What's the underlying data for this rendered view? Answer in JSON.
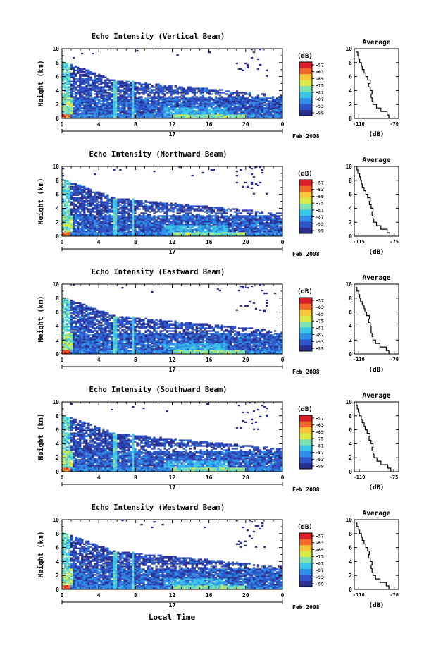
{
  "figure": {
    "date_label": "Feb 2008",
    "day_label": "17",
    "xlabel_bottom": "Local Time"
  },
  "colorbar": {
    "label": "(dB)",
    "tick_labels": [
      "-57",
      "-63",
      "-69",
      "-75",
      "-81",
      "-87",
      "-93",
      "-99"
    ],
    "colors": [
      "#2b2f8f",
      "#2f55c8",
      "#2f8ee6",
      "#39c6e8",
      "#7fe0b0",
      "#d8ea4a",
      "#f7c43a",
      "#ef6a2a",
      "#d9202a"
    ]
  },
  "chart_data": [
    {
      "type": "heatmap",
      "title": "Echo Intensity (Vertical Beam)",
      "ylabel": "Height (km)",
      "xlabel": "",
      "x_ticks": [
        "0",
        "4",
        "8",
        "12",
        "16",
        "20",
        "0"
      ],
      "x_range": [
        0,
        24
      ],
      "y_ticks": [
        "0",
        "2",
        "4",
        "6",
        "8",
        "10"
      ],
      "y_range": [
        0,
        10
      ],
      "colorbar_label": "(dB)",
      "colorbar_range": [
        -99,
        -57
      ],
      "profile": {
        "title": "Average",
        "xlabel": "(dB)",
        "x_ticks": [
          "-110",
          "-70"
        ],
        "x_range": [
          -115,
          -65
        ],
        "y_ticks": [
          "0",
          "2",
          "4",
          "6",
          "8",
          "10"
        ],
        "y_range": [
          0,
          10
        ],
        "values": [
          [
            -76,
            0
          ],
          [
            -78,
            0.5
          ],
          [
            -85,
            1
          ],
          [
            -90,
            1.5
          ],
          [
            -94,
            2
          ],
          [
            -95,
            2.5
          ],
          [
            -96,
            3
          ],
          [
            -95,
            3.5
          ],
          [
            -97,
            4
          ],
          [
            -99,
            4.5
          ],
          [
            -97,
            5
          ],
          [
            -100,
            5.5
          ],
          [
            -102,
            6
          ],
          [
            -104,
            6.5
          ],
          [
            -106,
            7
          ],
          [
            -107,
            7.5
          ],
          [
            -109,
            8
          ],
          [
            -110,
            8.5
          ],
          [
            -111,
            9
          ],
          [
            -113,
            9.5
          ]
        ]
      }
    },
    {
      "type": "heatmap",
      "title": "Echo Intensity (Northward Beam)",
      "ylabel": "Height (km)",
      "xlabel": "",
      "x_ticks": [
        "0",
        "4",
        "8",
        "12",
        "16",
        "20",
        "0"
      ],
      "x_range": [
        0,
        24
      ],
      "y_ticks": [
        "0",
        "2",
        "4",
        "6",
        "8",
        "10"
      ],
      "y_range": [
        0,
        10
      ],
      "colorbar_label": "(dB)",
      "colorbar_range": [
        -99,
        -57
      ],
      "profile": {
        "title": "Average",
        "xlabel": "(dB)",
        "x_ticks": [
          "-115",
          "-75"
        ],
        "x_range": [
          -120,
          -70
        ],
        "y_ticks": [
          "0",
          "2",
          "4",
          "6",
          "8",
          "10"
        ],
        "y_range": [
          0,
          10
        ],
        "values": [
          [
            -80,
            0
          ],
          [
            -83,
            0.5
          ],
          [
            -90,
            1
          ],
          [
            -95,
            1.5
          ],
          [
            -98,
            2
          ],
          [
            -99,
            2.5
          ],
          [
            -100,
            3
          ],
          [
            -99,
            3.5
          ],
          [
            -101,
            4
          ],
          [
            -103,
            4.5
          ],
          [
            -102,
            5
          ],
          [
            -105,
            5.5
          ],
          [
            -107,
            6
          ],
          [
            -109,
            6.5
          ],
          [
            -111,
            7
          ],
          [
            -112,
            7.5
          ],
          [
            -113,
            8
          ],
          [
            -114,
            8.5
          ],
          [
            -116,
            9
          ],
          [
            -117,
            9.5
          ]
        ]
      }
    },
    {
      "type": "heatmap",
      "title": "Echo Intensity (Eastward Beam)",
      "ylabel": "Height (km)",
      "xlabel": "",
      "x_ticks": [
        "0",
        "4",
        "8",
        "12",
        "16",
        "20",
        "0"
      ],
      "x_range": [
        0,
        24
      ],
      "y_ticks": [
        "0",
        "2",
        "4",
        "6",
        "8",
        "10"
      ],
      "y_range": [
        0,
        10
      ],
      "colorbar_label": "(dB)",
      "colorbar_range": [
        -99,
        -57
      ],
      "profile": {
        "title": "Average",
        "xlabel": "(dB)",
        "x_ticks": [
          "-110",
          "-70"
        ],
        "x_range": [
          -115,
          -65
        ],
        "y_ticks": [
          "0",
          "2",
          "4",
          "6",
          "8",
          "10"
        ],
        "y_range": [
          0,
          10
        ],
        "values": [
          [
            -76,
            0
          ],
          [
            -79,
            0.5
          ],
          [
            -86,
            1
          ],
          [
            -91,
            1.5
          ],
          [
            -94,
            2
          ],
          [
            -95,
            2.5
          ],
          [
            -96,
            3
          ],
          [
            -96,
            3.5
          ],
          [
            -97,
            4
          ],
          [
            -99,
            4.5
          ],
          [
            -98,
            5
          ],
          [
            -101,
            5.5
          ],
          [
            -103,
            6
          ],
          [
            -104,
            6.5
          ],
          [
            -106,
            7
          ],
          [
            -108,
            7.5
          ],
          [
            -109,
            8
          ],
          [
            -110,
            8.5
          ],
          [
            -112,
            9
          ],
          [
            -113,
            9.5
          ]
        ]
      }
    },
    {
      "type": "heatmap",
      "title": "Echo Intensity (Southward Beam)",
      "ylabel": "Height (km)",
      "xlabel": "",
      "x_ticks": [
        "0",
        "4",
        "8",
        "12",
        "16",
        "20",
        "0"
      ],
      "x_range": [
        0,
        24
      ],
      "y_ticks": [
        "0",
        "2",
        "4",
        "6",
        "8",
        "10"
      ],
      "y_range": [
        0,
        10
      ],
      "colorbar_label": "(dB)",
      "colorbar_range": [
        -99,
        -57
      ],
      "profile": {
        "title": "Average",
        "xlabel": "(dB)",
        "x_ticks": [
          "-110",
          "-75"
        ],
        "x_range": [
          -115,
          -70
        ],
        "y_ticks": [
          "0",
          "2",
          "4",
          "6",
          "8",
          "10"
        ],
        "y_range": [
          0,
          10
        ],
        "values": [
          [
            -78,
            0
          ],
          [
            -81,
            0.5
          ],
          [
            -88,
            1
          ],
          [
            -92,
            1.5
          ],
          [
            -95,
            2
          ],
          [
            -96,
            2.5
          ],
          [
            -97,
            3
          ],
          [
            -96,
            3.5
          ],
          [
            -98,
            4
          ],
          [
            -100,
            4.5
          ],
          [
            -99,
            5
          ],
          [
            -102,
            5.5
          ],
          [
            -104,
            6
          ],
          [
            -105,
            6.5
          ],
          [
            -107,
            7
          ],
          [
            -108,
            7.5
          ],
          [
            -110,
            8
          ],
          [
            -111,
            8.5
          ],
          [
            -112,
            9
          ],
          [
            -113,
            9.5
          ]
        ]
      }
    },
    {
      "type": "heatmap",
      "title": "Echo Intensity (Westward Beam)",
      "ylabel": "Height (km)",
      "xlabel": "Local Time",
      "x_ticks": [
        "0",
        "4",
        "8",
        "12",
        "16",
        "20",
        "0"
      ],
      "x_range": [
        0,
        24
      ],
      "y_ticks": [
        "0",
        "2",
        "4",
        "6",
        "8",
        "10"
      ],
      "y_range": [
        0,
        10
      ],
      "colorbar_label": "(dB)",
      "colorbar_range": [
        -99,
        -57
      ],
      "profile": {
        "title": "Average",
        "xlabel": "(dB)",
        "x_ticks": [
          "-110",
          "-70"
        ],
        "x_range": [
          -115,
          -65
        ],
        "y_ticks": [
          "0",
          "2",
          "4",
          "6",
          "8",
          "10"
        ],
        "y_range": [
          0,
          10
        ],
        "values": [
          [
            -76,
            0
          ],
          [
            -79,
            0.5
          ],
          [
            -86,
            1
          ],
          [
            -91,
            1.5
          ],
          [
            -94,
            2
          ],
          [
            -95,
            2.5
          ],
          [
            -96,
            3
          ],
          [
            -95,
            3.5
          ],
          [
            -97,
            4
          ],
          [
            -99,
            4.5
          ],
          [
            -98,
            5
          ],
          [
            -100,
            5.5
          ],
          [
            -102,
            6
          ],
          [
            -104,
            6.5
          ],
          [
            -106,
            7
          ],
          [
            -107,
            7.5
          ],
          [
            -109,
            8
          ],
          [
            -110,
            8.5
          ],
          [
            -112,
            9
          ],
          [
            -113,
            9.5
          ]
        ]
      }
    }
  ]
}
